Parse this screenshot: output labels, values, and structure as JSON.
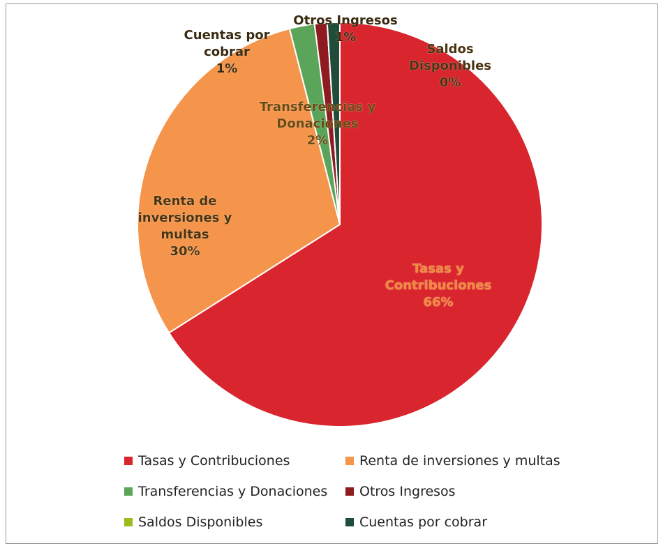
{
  "chart_data": {
    "type": "pie",
    "categories": [
      "Tasas y Contribuciones",
      "Renta de inversiones y multas",
      "Transferencias y Donaciones",
      "Otros Ingresos",
      "Saldos Disponibles",
      "Cuentas por cobrar"
    ],
    "values": [
      66,
      30,
      2,
      1,
      0,
      1
    ],
    "value_labels": [
      "66%",
      "30%",
      "2%",
      "1%",
      "0%",
      "1%"
    ],
    "colors": [
      "#d9262e",
      "#f5954b",
      "#5aa55a",
      "#8e1b1f",
      "#9bbb1f",
      "#1f4d3a"
    ],
    "legend": "bottom"
  }
}
